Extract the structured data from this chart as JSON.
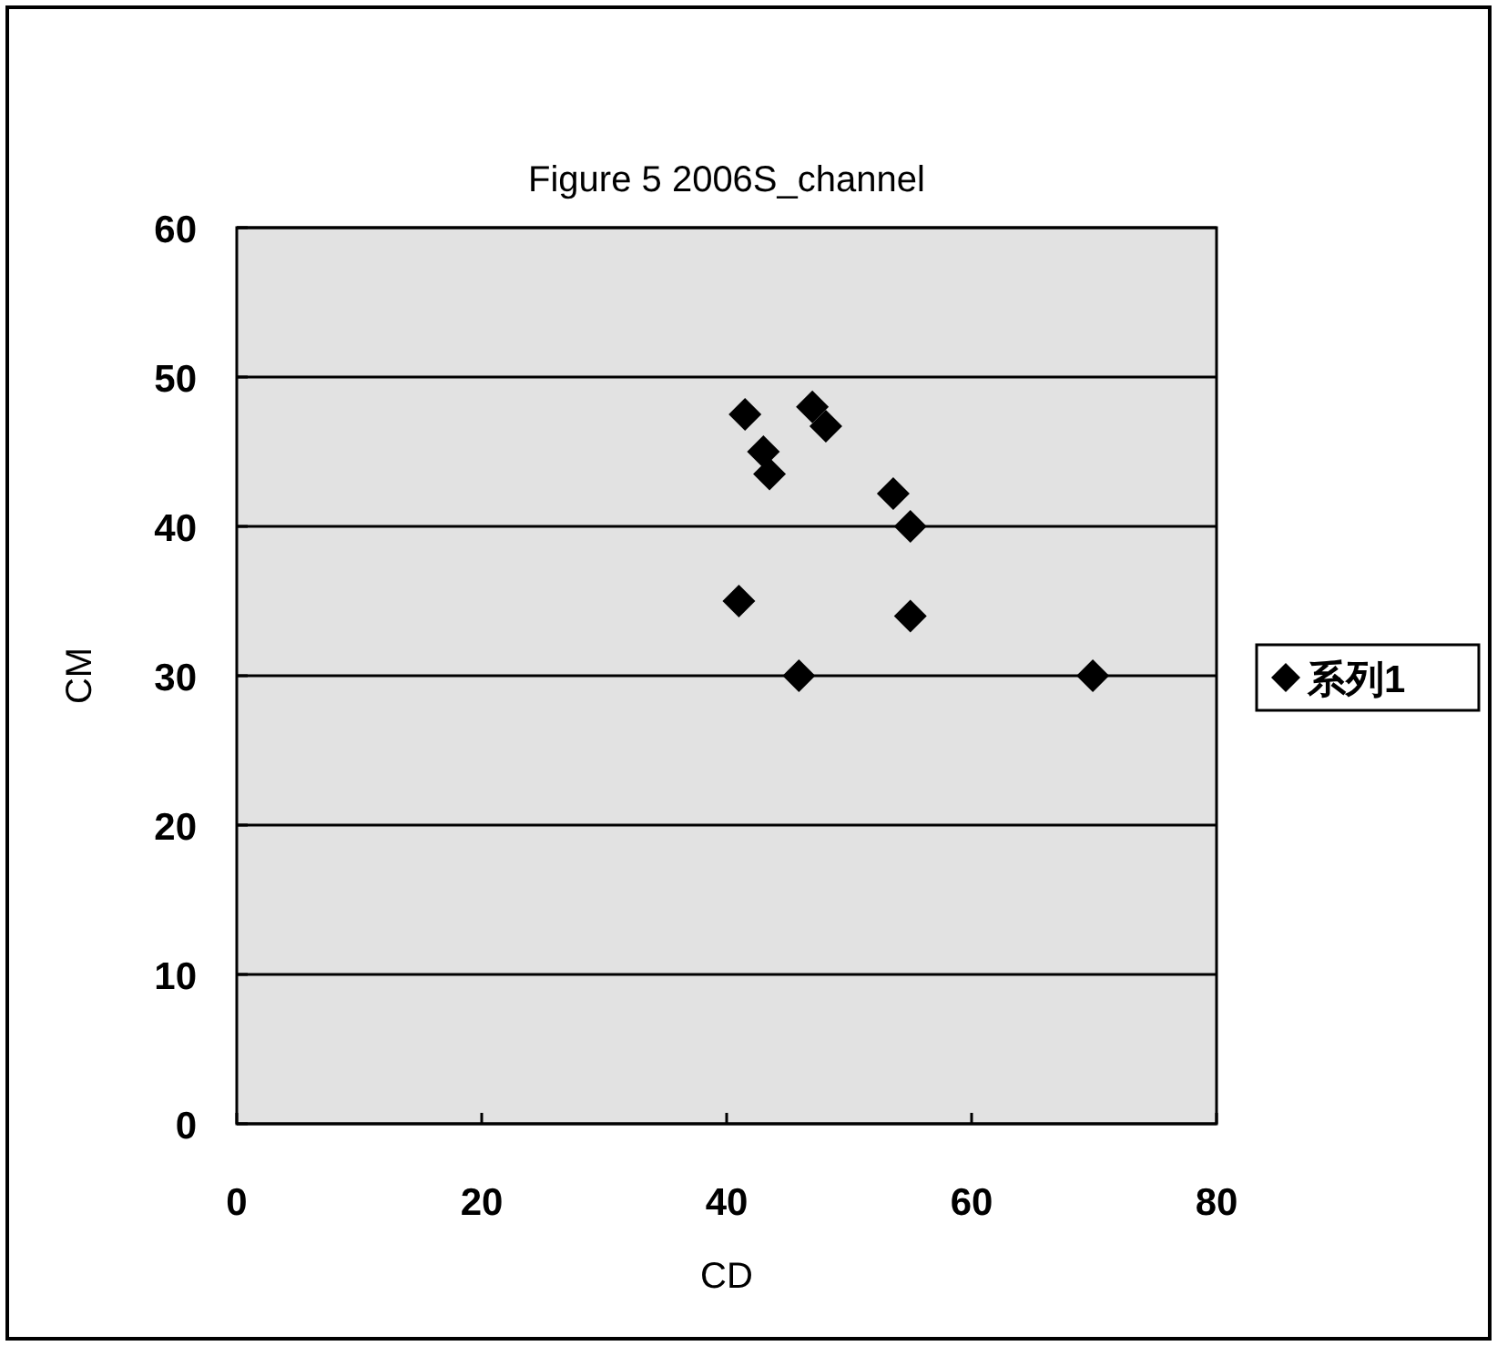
{
  "chart_data": {
    "type": "scatter",
    "title": "Figure 5 2006S_channel",
    "xlabel": "CD",
    "ylabel": "CM",
    "x": [
      41.5,
      47.0,
      48.1,
      43.0,
      43.5,
      53.6,
      55.0,
      41.0,
      55.0,
      45.9,
      69.9
    ],
    "series": [
      {
        "name": "系列1",
        "color": "#000000",
        "values": [
          47.5,
          48.0,
          46.7,
          45.0,
          43.5,
          42.2,
          40.0,
          35.0,
          34.0,
          30.0,
          30.0
        ]
      }
    ],
    "xlim": [
      0,
      80
    ],
    "ylim": [
      0,
      60
    ],
    "xticks": [
      0,
      20,
      40,
      60,
      80
    ],
    "yticks": [
      0,
      10,
      20,
      30,
      40,
      50,
      60
    ],
    "grid": "y",
    "legend": "right",
    "marker": "diamond"
  }
}
